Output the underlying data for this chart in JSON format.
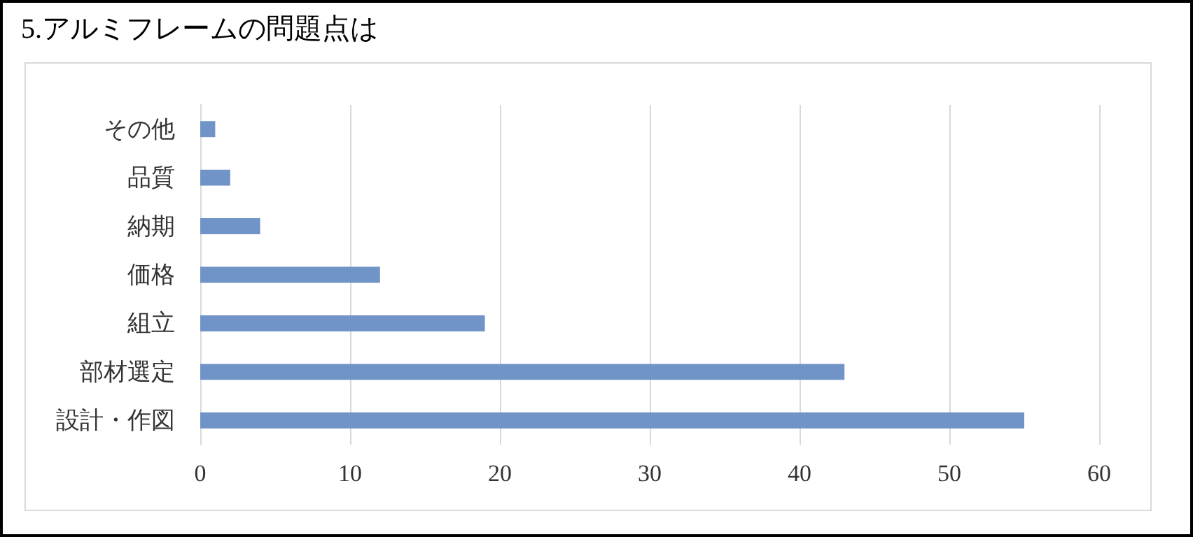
{
  "chart_data": {
    "type": "bar",
    "orientation": "horizontal",
    "title": "5.アルミフレームの問題点は",
    "categories": [
      "その他",
      "品質",
      "納期",
      "価格",
      "組立",
      "部材選定",
      "設計・作図"
    ],
    "values": [
      1,
      2,
      4,
      12,
      19,
      43,
      55
    ],
    "color": "#7094c8",
    "xlim": [
      0,
      60
    ],
    "xticks": [
      0,
      10,
      20,
      30,
      40,
      50,
      60
    ],
    "grid": "x"
  }
}
